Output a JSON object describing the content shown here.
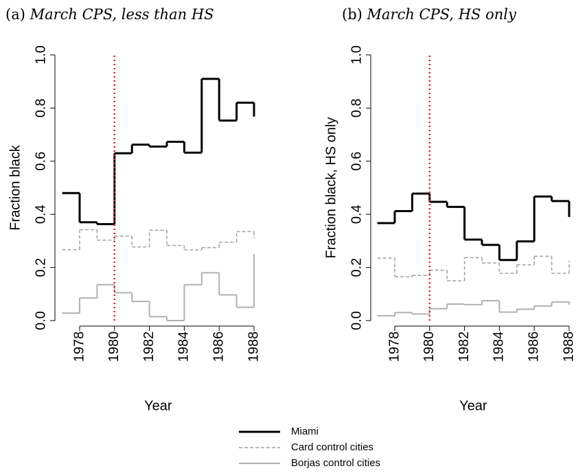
{
  "chart_data": [
    {
      "type": "step",
      "label": "(a)",
      "title": "March CPS, less than HS",
      "xlabel": "Year",
      "ylabel": "Fraction black",
      "x": [
        1977,
        1978,
        1979,
        1980,
        1981,
        1982,
        1983,
        1984,
        1985,
        1986,
        1987,
        1988
      ],
      "xlim": [
        1977,
        1988
      ],
      "xticks": [
        1978,
        1980,
        1982,
        1984,
        1986,
        1988
      ],
      "ylim": [
        0,
        1
      ],
      "yticks": [
        {
          "value": 0,
          "label": "0.0"
        },
        0.2,
        0.4,
        0.6,
        0.8,
        {
          "value": 1,
          "label": "1.0"
        }
      ],
      "vline": 1980,
      "vline_color": "#e41a1c",
      "series": [
        {
          "name": "Miami",
          "color": "#000000",
          "width": 3,
          "dash": "none",
          "values": [
            0.48,
            0.37,
            0.363,
            0.63,
            0.662,
            0.655,
            0.673,
            0.632,
            0.91,
            0.753,
            0.82,
            0.768
          ]
        },
        {
          "name": "Card control cities",
          "color": "#a0a0a0",
          "width": 1.5,
          "dash": "5 3",
          "values": [
            0.267,
            0.342,
            0.303,
            0.318,
            0.277,
            0.34,
            0.283,
            0.266,
            0.275,
            0.295,
            0.335,
            0.31
          ]
        },
        {
          "name": "Borjas control cities",
          "color": "#b0b0b0",
          "width": 2,
          "dash": "none",
          "values": [
            0.028,
            0.085,
            0.135,
            0.105,
            0.072,
            0.015,
            0,
            0.135,
            0.18,
            0.097,
            0.05,
            0.25
          ]
        }
      ]
    },
    {
      "type": "step",
      "label": "(b)",
      "title": "March CPS, HS only",
      "xlabel": "Year",
      "ylabel": "Fraction black, HS only",
      "x": [
        1977,
        1978,
        1979,
        1980,
        1981,
        1982,
        1983,
        1984,
        1985,
        1986,
        1987,
        1988
      ],
      "xlim": [
        1977,
        1988
      ],
      "xticks": [
        1978,
        1980,
        1982,
        1984,
        1986,
        1988
      ],
      "ylim": [
        0,
        1
      ],
      "yticks": [
        {
          "value": 0,
          "label": "0.0"
        },
        0.2,
        0.4,
        0.6,
        0.8,
        {
          "value": 1,
          "label": "1.0"
        }
      ],
      "vline": 1980,
      "vline_color": "#e41a1c",
      "series": [
        {
          "name": "Miami",
          "color": "#000000",
          "width": 3,
          "dash": "none",
          "values": [
            0.367,
            0.412,
            0.478,
            0.447,
            0.428,
            0.305,
            0.285,
            0.228,
            0.298,
            0.467,
            0.45,
            0.39
          ]
        },
        {
          "name": "Card control cities",
          "color": "#a0a0a0",
          "width": 1.5,
          "dash": "5 3",
          "values": [
            0.235,
            0.165,
            0.17,
            0.19,
            0.15,
            0.237,
            0.217,
            0.178,
            0.21,
            0.242,
            0.178,
            0.225
          ]
        },
        {
          "name": "Borjas control cities",
          "color": "#b0b0b0",
          "width": 2,
          "dash": "none",
          "values": [
            0.018,
            0.03,
            0.025,
            0.045,
            0.062,
            0.06,
            0.075,
            0.032,
            0.043,
            0.055,
            0.07,
            0.06
          ]
        }
      ]
    }
  ]
}
